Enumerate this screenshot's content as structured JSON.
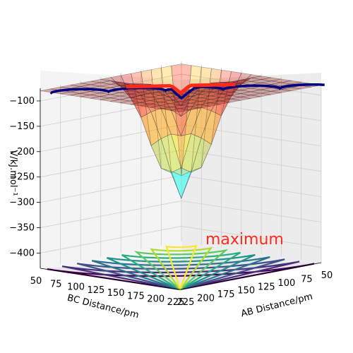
{
  "chart_data": {
    "type": "surface3d",
    "zlabel": "V/kJ.mol⁻¹",
    "xlabel": "AB Distance/pm",
    "ylabel": "BC Distance/pm",
    "z_ticks": [
      "−100",
      "−150",
      "−200",
      "−250",
      "−300",
      "−350",
      "−400"
    ],
    "ab_ticks": [
      "225",
      "200",
      "175",
      "150",
      "125",
      "100",
      "75",
      "50"
    ],
    "bc_ticks": [
      "50",
      "75",
      "100",
      "125",
      "150",
      "175",
      "200",
      "225"
    ],
    "zlim": [
      -430,
      -75
    ],
    "ab_range": [
      50,
      225
    ],
    "bc_range": [
      50,
      225
    ],
    "annotation": "maximum",
    "annotation_color": "#ff2a1a",
    "colormap": "jet",
    "contour_colormap": "viridis",
    "trajectory_color": "#000080",
    "surface_opacity": 0.3
  }
}
